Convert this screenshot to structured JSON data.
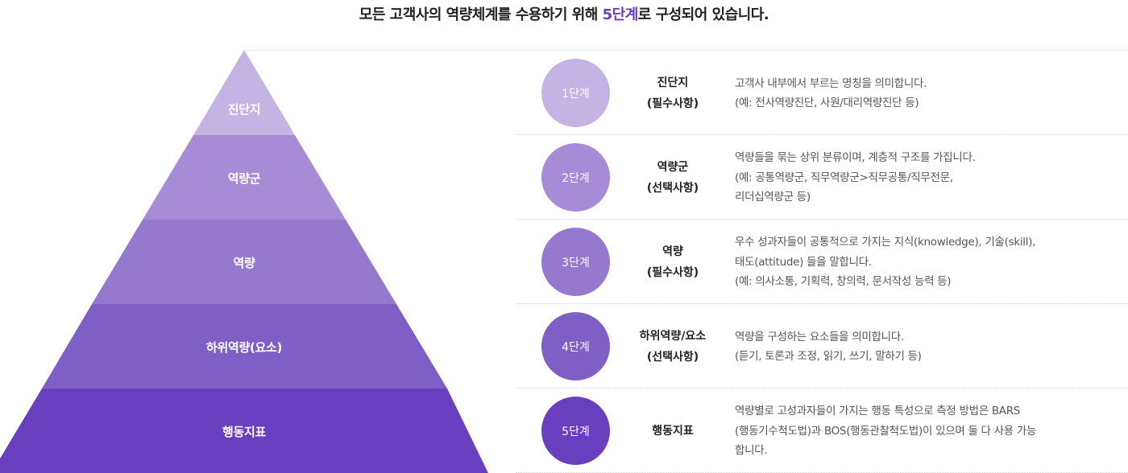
{
  "headline": {
    "before": "모든 고객사의 역량체계를 수용하기 위해 ",
    "highlight": "5단계",
    "after": "로 구성되어 있습니다."
  },
  "colors": {
    "accent": "#6a3fbf",
    "levels": [
      "#c3b4e4",
      "#a68cd6",
      "#9479cf",
      "#7e5fc6",
      "#6a3fbf"
    ]
  },
  "stages": [
    {
      "pyramid_label": "진단지",
      "circle_label": "1단계",
      "name": "진단지",
      "name_sub": "(필수사항)",
      "desc": [
        "고객사 내부에서 부르는 명칭을 의미합니다.",
        "(예: 전사역량진단, 사원/대리역량진단 등)"
      ]
    },
    {
      "pyramid_label": "역량군",
      "circle_label": "2단계",
      "name": "역량군",
      "name_sub": "(선택사항)",
      "desc": [
        "역량들을 묶는 상위 분류이며, 계층적 구조를 가집니다.",
        "(예: 공통역량군, 직무역량군>직무공통/직무전문,",
        "리더십역량군 등)"
      ]
    },
    {
      "pyramid_label": "역량",
      "circle_label": "3단계",
      "name": "역량",
      "name_sub": "(필수사항)",
      "desc": [
        "우수 성과자들이 공통적으로 가지는 지식(knowledge), 기술(skill),",
        "태도(attitude) 들을 말합니다.",
        "(예: 의사소통, 기획력, 창의력, 문서작성 능력 등)"
      ]
    },
    {
      "pyramid_label": "하위역량(요소)",
      "circle_label": "4단계",
      "name": "하위역량/요소",
      "name_sub": "(선택사항)",
      "desc": [
        "역량을 구성하는 요소들을 의미합니다.",
        "(듣기, 토론과 조정, 읽기, 쓰기, 말하기 등)"
      ]
    },
    {
      "pyramid_label": "행동지표",
      "circle_label": "5단계",
      "name": "행동지표",
      "name_sub": "",
      "desc": [
        "역량별로 고성과자들이 가지는 행동 특성으로 측정 방법은 BARS",
        "(행동기수척도법)과 BOS(행동관찰척도법)이 있으며 둘 다 사용 가능",
        "합니다."
      ]
    }
  ]
}
